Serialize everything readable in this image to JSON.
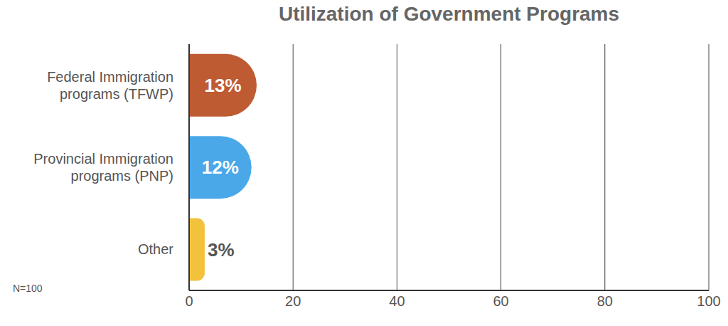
{
  "chart_data": {
    "type": "bar",
    "title": "Utilization of Government Programs",
    "orientation": "horizontal",
    "categories": [
      "Federal Immigration programs (TFWP)",
      "Provincial Immigration programs (PNP)",
      "Other"
    ],
    "values": [
      13,
      12,
      3
    ],
    "value_labels": [
      "13%",
      "12%",
      "3%"
    ],
    "colors": [
      "#bf5b33",
      "#4aa8e8",
      "#f2c23c"
    ],
    "xlim": [
      0,
      100
    ],
    "xticks": [
      0,
      20,
      40,
      60,
      80,
      100
    ],
    "grid": true,
    "data_labels": true,
    "annotations": [
      "N=100"
    ]
  }
}
